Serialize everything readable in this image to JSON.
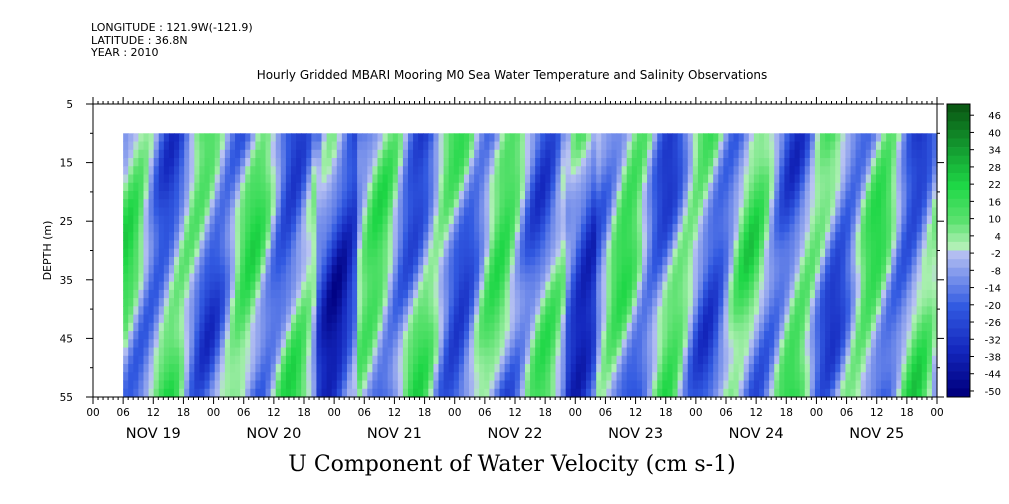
{
  "header": {
    "longitude": "LONGITUDE : 121.9W(-121.9)",
    "latitude": "LATITUDE : 36.8N",
    "year": "YEAR : 2010"
  },
  "chart_data": {
    "type": "heatmap",
    "title": "Hourly Gridded MBARI Mooring M0 Sea Water Temperature and Salinity Observations",
    "xlabel": "U Component of Water Velocity (cm s-1)",
    "ylabel": "DEPTH (m)",
    "ylim": [
      5,
      55
    ],
    "y_ticks": [
      5,
      15,
      25,
      35,
      45,
      55
    ],
    "data_depth_range": [
      10,
      55
    ],
    "x_range_hours": [
      0,
      168
    ],
    "data_start_hour": 6,
    "x_hour_ticks": [
      "00",
      "06",
      "12",
      "18",
      "00",
      "06",
      "12",
      "18",
      "00",
      "06",
      "12",
      "18",
      "00",
      "06",
      "12",
      "18",
      "00",
      "06",
      "12",
      "18",
      "00",
      "06",
      "12",
      "18",
      "00",
      "06",
      "12",
      "18",
      "00"
    ],
    "day_labels": [
      "NOV 19",
      "NOV 20",
      "NOV 21",
      "NOV 22",
      "NOV 23",
      "NOV 24",
      "NOV 25"
    ],
    "colorbar_levels": [
      "46",
      "40",
      "34",
      "28",
      "22",
      "16",
      "10",
      "4",
      "-2",
      "-8",
      "-14",
      "-20",
      "-26",
      "-32",
      "-38",
      "-44",
      "-50"
    ],
    "colorbar_range": [
      -50,
      49
    ],
    "color_scale": {
      "low": "#000080",
      "mid_negative": "#2a52d9",
      "near_zero_negative": "#b4c0f0",
      "near_zero_positive": "#a8f0b0",
      "mid_positive": "#1ee04a",
      "high": "#0a5a14"
    }
  }
}
